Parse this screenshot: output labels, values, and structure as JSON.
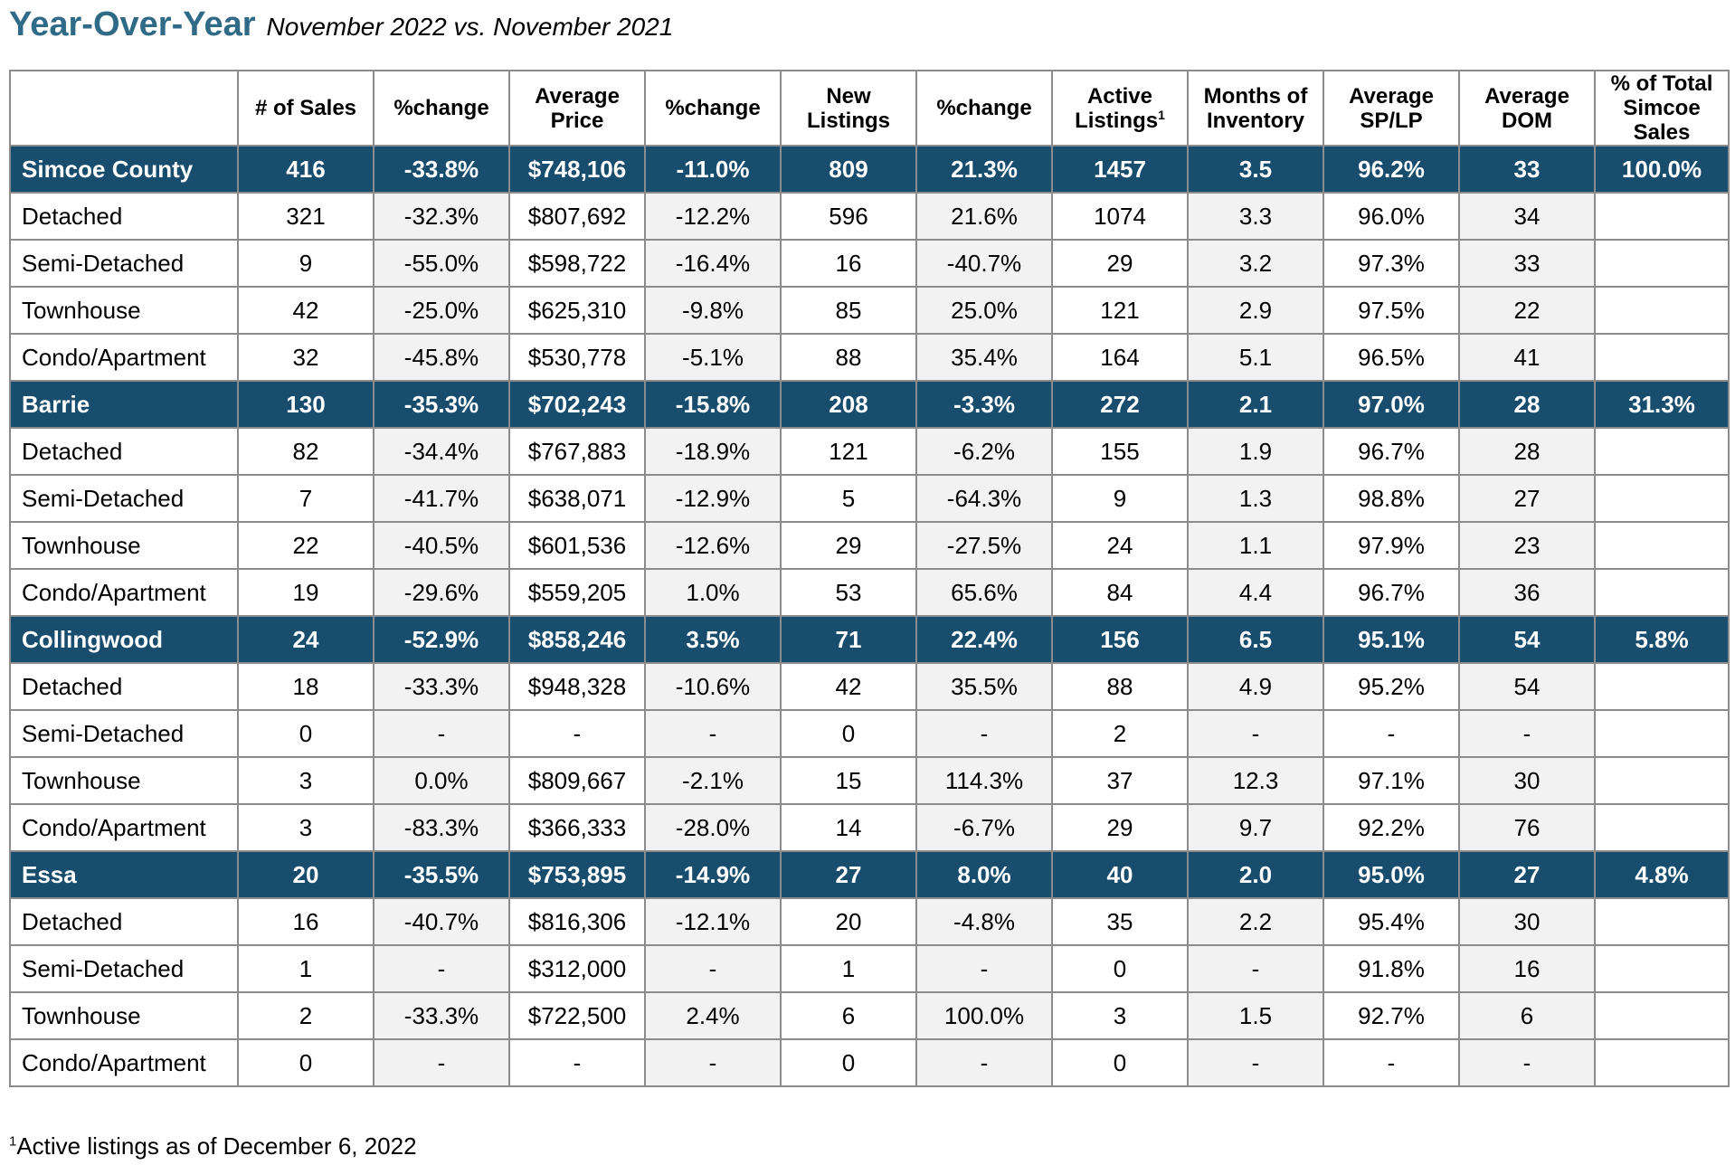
{
  "header": {
    "title": "Year-Over-Year",
    "subtitle": "November 2022 vs. November 2021"
  },
  "table": {
    "columns": [
      "",
      "# of Sales",
      "%change",
      "Average Price",
      "%change",
      "New Listings",
      "%change",
      "Active Listings",
      "Months of Inventory",
      "Average SP/LP",
      "Average DOM",
      "% of Total Simcoe Sales"
    ],
    "active_listings_footnote_mark": "1",
    "rows": [
      {
        "type": "region",
        "cells": [
          "Simcoe County",
          "416",
          "-33.8%",
          "$748,106",
          "-11.0%",
          "809",
          "21.3%",
          "1457",
          "3.5",
          "96.2%",
          "33",
          "100.0%"
        ]
      },
      {
        "type": "sub",
        "cells": [
          "Detached",
          "321",
          "-32.3%",
          "$807,692",
          "-12.2%",
          "596",
          "21.6%",
          "1074",
          "3.3",
          "96.0%",
          "34",
          ""
        ]
      },
      {
        "type": "sub",
        "cells": [
          "Semi-Detached",
          "9",
          "-55.0%",
          "$598,722",
          "-16.4%",
          "16",
          "-40.7%",
          "29",
          "3.2",
          "97.3%",
          "33",
          ""
        ]
      },
      {
        "type": "sub",
        "cells": [
          "Townhouse",
          "42",
          "-25.0%",
          "$625,310",
          "-9.8%",
          "85",
          "25.0%",
          "121",
          "2.9",
          "97.5%",
          "22",
          ""
        ]
      },
      {
        "type": "sub",
        "cells": [
          "Condo/Apartment",
          "32",
          "-45.8%",
          "$530,778",
          "-5.1%",
          "88",
          "35.4%",
          "164",
          "5.1",
          "96.5%",
          "41",
          ""
        ]
      },
      {
        "type": "region",
        "cells": [
          "Barrie",
          "130",
          "-35.3%",
          "$702,243",
          "-15.8%",
          "208",
          "-3.3%",
          "272",
          "2.1",
          "97.0%",
          "28",
          "31.3%"
        ]
      },
      {
        "type": "sub",
        "cells": [
          "Detached",
          "82",
          "-34.4%",
          "$767,883",
          "-18.9%",
          "121",
          "-6.2%",
          "155",
          "1.9",
          "96.7%",
          "28",
          ""
        ]
      },
      {
        "type": "sub",
        "cells": [
          "Semi-Detached",
          "7",
          "-41.7%",
          "$638,071",
          "-12.9%",
          "5",
          "-64.3%",
          "9",
          "1.3",
          "98.8%",
          "27",
          ""
        ]
      },
      {
        "type": "sub",
        "cells": [
          "Townhouse",
          "22",
          "-40.5%",
          "$601,536",
          "-12.6%",
          "29",
          "-27.5%",
          "24",
          "1.1",
          "97.9%",
          "23",
          ""
        ]
      },
      {
        "type": "sub",
        "cells": [
          "Condo/Apartment",
          "19",
          "-29.6%",
          "$559,205",
          "1.0%",
          "53",
          "65.6%",
          "84",
          "4.4",
          "96.7%",
          "36",
          ""
        ]
      },
      {
        "type": "region",
        "cells": [
          "Collingwood",
          "24",
          "-52.9%",
          "$858,246",
          "3.5%",
          "71",
          "22.4%",
          "156",
          "6.5",
          "95.1%",
          "54",
          "5.8%"
        ]
      },
      {
        "type": "sub",
        "cells": [
          "Detached",
          "18",
          "-33.3%",
          "$948,328",
          "-10.6%",
          "42",
          "35.5%",
          "88",
          "4.9",
          "95.2%",
          "54",
          ""
        ]
      },
      {
        "type": "sub",
        "cells": [
          "Semi-Detached",
          "0",
          "-",
          "-",
          "-",
          "0",
          "-",
          "2",
          "-",
          "-",
          "-",
          ""
        ]
      },
      {
        "type": "sub",
        "cells": [
          "Townhouse",
          "3",
          "0.0%",
          "$809,667",
          "-2.1%",
          "15",
          "114.3%",
          "37",
          "12.3",
          "97.1%",
          "30",
          ""
        ]
      },
      {
        "type": "sub",
        "cells": [
          "Condo/Apartment",
          "3",
          "-83.3%",
          "$366,333",
          "-28.0%",
          "14",
          "-6.7%",
          "29",
          "9.7",
          "92.2%",
          "76",
          ""
        ]
      },
      {
        "type": "region",
        "cells": [
          "Essa",
          "20",
          "-35.5%",
          "$753,895",
          "-14.9%",
          "27",
          "8.0%",
          "40",
          "2.0",
          "95.0%",
          "27",
          "4.8%"
        ]
      },
      {
        "type": "sub",
        "cells": [
          "Detached",
          "16",
          "-40.7%",
          "$816,306",
          "-12.1%",
          "20",
          "-4.8%",
          "35",
          "2.2",
          "95.4%",
          "30",
          ""
        ]
      },
      {
        "type": "sub",
        "cells": [
          "Semi-Detached",
          "1",
          "-",
          "$312,000",
          "-",
          "1",
          "-",
          "0",
          "-",
          "91.8%",
          "16",
          ""
        ]
      },
      {
        "type": "sub",
        "cells": [
          "Townhouse",
          "2",
          "-33.3%",
          "$722,500",
          "2.4%",
          "6",
          "100.0%",
          "3",
          "1.5",
          "92.7%",
          "6",
          ""
        ]
      },
      {
        "type": "sub",
        "cells": [
          "Condo/Apartment",
          "0",
          "-",
          "-",
          "-",
          "0",
          "-",
          "0",
          "-",
          "-",
          "-",
          ""
        ]
      }
    ]
  },
  "footnote": {
    "mark": "1",
    "text": "Active listings as of December 6, 2022"
  },
  "colors": {
    "title": "#2f6a86",
    "region_row_bg": "#184d6e",
    "alt_col_bg": "#f2f2f2",
    "border": "#8c8c8c"
  }
}
